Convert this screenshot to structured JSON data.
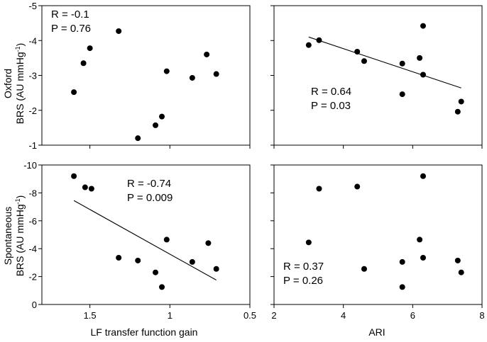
{
  "figure": {
    "row_labels": [
      {
        "line1": "Oxford",
        "line2": "BRS (AU mmHg",
        "sup": "-1",
        "close": ")"
      },
      {
        "line1": "Spontaneous",
        "line2": "BRS (AU mmHg",
        "sup": "-1",
        "close": ")"
      }
    ],
    "x_labels": [
      "LF transfer function gain",
      "ARI"
    ]
  },
  "chart_data": [
    {
      "type": "scatter",
      "panel": "top-left",
      "xlim": [
        1.8,
        0.5
      ],
      "ylim": [
        -1,
        -5
      ],
      "xticks": [
        1.5,
        1,
        0.5
      ],
      "xtick_labels": [
        "1.5",
        "1",
        "0.5"
      ],
      "yticks": [
        -5,
        -4,
        -3,
        -2,
        -1
      ],
      "ytick_labels": [
        "-5",
        "-4",
        "-3",
        "-2",
        "-1"
      ],
      "show_xtick_labels": false,
      "points": [
        [
          1.6,
          -2.52
        ],
        [
          1.54,
          -3.35
        ],
        [
          1.5,
          -3.78
        ],
        [
          1.32,
          -4.27
        ],
        [
          1.2,
          -1.2
        ],
        [
          1.09,
          -1.57
        ],
        [
          1.05,
          -1.82
        ],
        [
          1.02,
          -3.12
        ],
        [
          0.86,
          -2.93
        ],
        [
          0.77,
          -3.6
        ],
        [
          0.71,
          -3.04
        ]
      ],
      "stats": [
        "R = -0.1",
        "P = 0.76"
      ],
      "stats_pos": "top-left",
      "fit": null
    },
    {
      "type": "scatter",
      "panel": "top-right",
      "xlim": [
        2,
        8
      ],
      "ylim": [
        -1,
        -5
      ],
      "xticks": [
        2,
        4,
        6,
        8
      ],
      "xtick_labels": [
        "2",
        "4",
        "6",
        "8"
      ],
      "yticks": [
        -5,
        -4,
        -3,
        -2,
        -1
      ],
      "ytick_labels": [],
      "show_xtick_labels": false,
      "points": [
        [
          3.0,
          -3.87
        ],
        [
          3.3,
          -4.01
        ],
        [
          4.4,
          -3.68
        ],
        [
          4.6,
          -3.41
        ],
        [
          5.7,
          -3.34
        ],
        [
          5.7,
          -2.46
        ],
        [
          6.2,
          -3.5
        ],
        [
          6.3,
          -4.42
        ],
        [
          6.3,
          -3.02
        ],
        [
          7.3,
          -1.96
        ],
        [
          7.4,
          -2.25
        ]
      ],
      "stats": [
        "R = 0.64",
        "P = 0.03"
      ],
      "stats_pos": "middle-left",
      "fit": [
        [
          3.0,
          -4.1
        ],
        [
          7.4,
          -2.64
        ]
      ]
    },
    {
      "type": "scatter",
      "panel": "bottom-left",
      "xlim": [
        1.8,
        0.5
      ],
      "ylim": [
        0,
        -10
      ],
      "xticks": [
        1.5,
        1,
        0.5
      ],
      "xtick_labels": [
        "1.5",
        "1",
        "0.5"
      ],
      "yticks": [
        -10,
        -8,
        -6,
        -4,
        -2,
        0
      ],
      "ytick_labels": [
        "-10",
        "-8",
        "-6",
        "-4",
        "-2",
        "0"
      ],
      "show_xtick_labels": true,
      "points": [
        [
          1.6,
          -9.2
        ],
        [
          1.53,
          -8.4
        ],
        [
          1.49,
          -8.3
        ],
        [
          1.32,
          -3.35
        ],
        [
          1.2,
          -3.15
        ],
        [
          1.09,
          -2.3
        ],
        [
          1.05,
          -1.25
        ],
        [
          1.02,
          -4.65
        ],
        [
          0.86,
          -3.05
        ],
        [
          0.76,
          -4.4
        ],
        [
          0.71,
          -2.55
        ]
      ],
      "stats": [
        "R = -0.74",
        "P = 0.009"
      ],
      "stats_pos": "top-middle",
      "fit": [
        [
          1.6,
          -7.45
        ],
        [
          0.71,
          -1.75
        ]
      ]
    },
    {
      "type": "scatter",
      "panel": "bottom-right",
      "xlim": [
        2,
        8
      ],
      "ylim": [
        0,
        -10
      ],
      "xticks": [
        2,
        4,
        6,
        8
      ],
      "xtick_labels": [
        "2",
        "4",
        "6",
        "8"
      ],
      "yticks": [
        -10,
        -8,
        -6,
        -4,
        -2,
        0
      ],
      "ytick_labels": [],
      "show_xtick_labels": true,
      "points": [
        [
          3.0,
          -4.45
        ],
        [
          3.3,
          -8.3
        ],
        [
          4.4,
          -8.45
        ],
        [
          4.6,
          -2.55
        ],
        [
          5.7,
          -3.05
        ],
        [
          5.7,
          -1.25
        ],
        [
          6.2,
          -4.65
        ],
        [
          6.3,
          -9.2
        ],
        [
          6.3,
          -3.35
        ],
        [
          7.3,
          -3.15
        ],
        [
          7.4,
          -2.3
        ]
      ],
      "stats": [
        "R = 0.37",
        "P = 0.26"
      ],
      "stats_pos": "bottom-left",
      "fit": null
    }
  ]
}
